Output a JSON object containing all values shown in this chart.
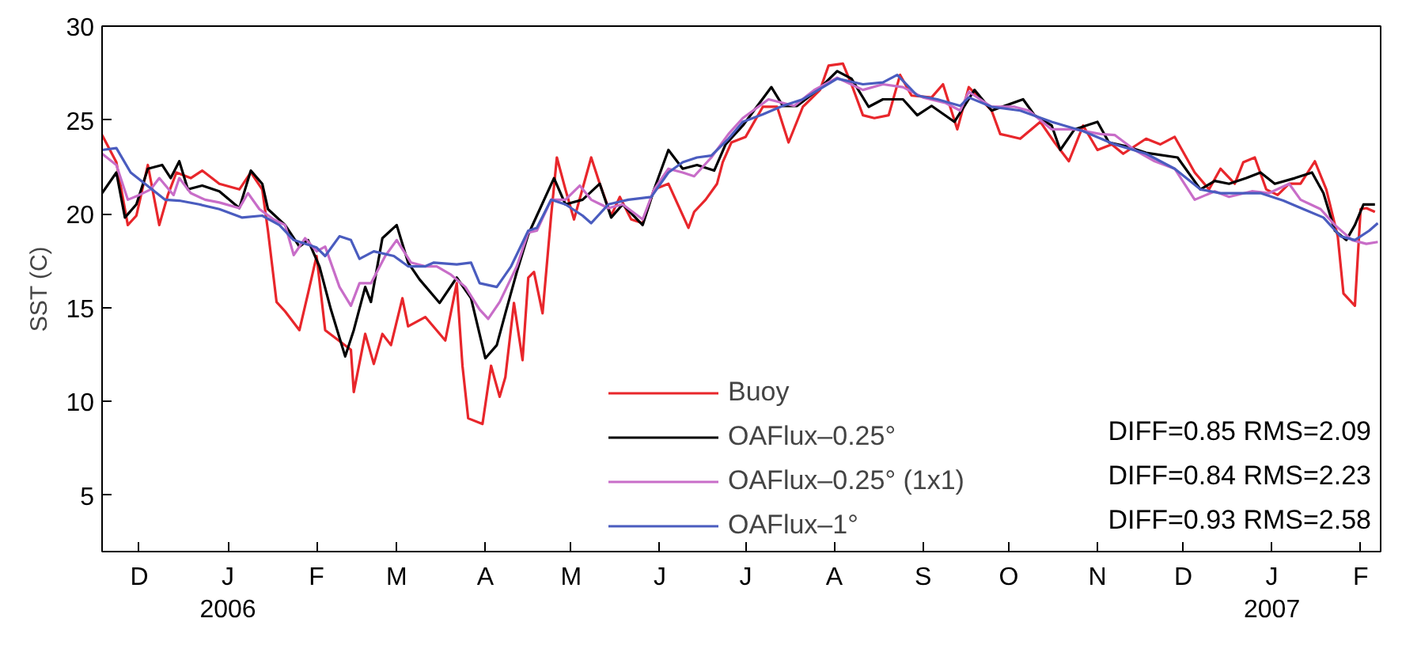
{
  "chart_data": {
    "type": "line",
    "ylabel": "SST (C)",
    "xlim": [
      "2005-11-18",
      "2007-02-08"
    ],
    "ylim": [
      2,
      30
    ],
    "yticks": [
      5,
      10,
      15,
      20,
      25,
      30
    ],
    "xticks": [
      {
        "value": "2005-12-01",
        "label": "D"
      },
      {
        "value": "2006-01-01",
        "label": "J\n2006"
      },
      {
        "value": "2006-02-01",
        "label": "F"
      },
      {
        "value": "2006-03-01",
        "label": "M"
      },
      {
        "value": "2006-04-01",
        "label": "A"
      },
      {
        "value": "2006-05-01",
        "label": "M"
      },
      {
        "value": "2006-06-01",
        "label": "J"
      },
      {
        "value": "2006-07-01",
        "label": "J"
      },
      {
        "value": "2006-08-01",
        "label": "A"
      },
      {
        "value": "2006-09-01",
        "label": "S"
      },
      {
        "value": "2006-10-01",
        "label": "O"
      },
      {
        "value": "2006-11-01",
        "label": "N"
      },
      {
        "value": "2006-12-01",
        "label": "D"
      },
      {
        "value": "2007-01-01",
        "label": "J\n2007"
      },
      {
        "value": "2007-02-01",
        "label": "F"
      }
    ],
    "grid": false,
    "legend": "bottom right",
    "line_style": "solid",
    "annotations": [
      "DIFF=0.85 RMS=2.09",
      "DIFF=0.84 RMS=2.23",
      "DIFF=0.93 RMS=2.58"
    ],
    "series": [
      {
        "name": "Buoy",
        "color": "#e8262b",
        "x": [
          "2005-11-18",
          "2005-11-23",
          "2005-11-27",
          "2005-11-30",
          "2005-12-04",
          "2005-12-08",
          "2005-12-11",
          "2005-12-14",
          "2005-12-19",
          "2005-12-23",
          "2005-12-29",
          "2006-01-05",
          "2006-01-09",
          "2006-01-13",
          "2006-01-15",
          "2006-01-18",
          "2006-01-21",
          "2006-01-26",
          "2006-01-29",
          "2006-02-01",
          "2006-02-04",
          "2006-02-13",
          "2006-02-14",
          "2006-02-18",
          "2006-02-21",
          "2006-02-24",
          "2006-02-27",
          "2006-03-03",
          "2006-03-05",
          "2006-03-11",
          "2006-03-18",
          "2006-03-22",
          "2006-03-24",
          "2006-03-26",
          "2006-03-31",
          "2006-04-03",
          "2006-04-06",
          "2006-04-08",
          "2006-04-11",
          "2006-04-14",
          "2006-04-16",
          "2006-04-18",
          "2006-04-21",
          "2006-04-24",
          "2006-04-26",
          "2006-04-29",
          "2006-05-02",
          "2006-05-08",
          "2006-05-11",
          "2006-05-15",
          "2006-05-18",
          "2006-05-22",
          "2006-05-26",
          "2006-05-30",
          "2006-06-04",
          "2006-06-11",
          "2006-06-13",
          "2006-06-17",
          "2006-06-21",
          "2006-06-23",
          "2006-06-26",
          "2006-07-01",
          "2006-07-07",
          "2006-07-12",
          "2006-07-16",
          "2006-07-21",
          "2006-07-27",
          "2006-07-30",
          "2006-08-04",
          "2006-08-07",
          "2006-08-11",
          "2006-08-15",
          "2006-08-20",
          "2006-08-24",
          "2006-08-28",
          "2006-09-04",
          "2006-09-08",
          "2006-09-13",
          "2006-09-17",
          "2006-09-25",
          "2006-09-28",
          "2006-10-05",
          "2006-10-12",
          "2006-10-17",
          "2006-10-22",
          "2006-10-27",
          "2006-11-01",
          "2006-11-06",
          "2006-11-10",
          "2006-11-18",
          "2006-11-23",
          "2006-11-28",
          "2006-12-05",
          "2006-12-10",
          "2006-12-14",
          "2006-12-19",
          "2006-12-22",
          "2006-12-26",
          "2006-12-30",
          "2007-01-03",
          "2007-01-07",
          "2007-01-11",
          "2007-01-16",
          "2007-01-20",
          "2007-01-24",
          "2007-01-26",
          "2007-01-30",
          "2007-02-01",
          "2007-02-03",
          "2007-02-06"
        ],
        "values": [
          24.2,
          22.75,
          19.4,
          19.9,
          22.6,
          19.4,
          21,
          22.2,
          21.9,
          22.3,
          21.6,
          21.3,
          22.2,
          21.3,
          19.1,
          15.3,
          14.8,
          13.8,
          15.75,
          17.75,
          13.8,
          12.75,
          10.5,
          13.6,
          12,
          13.6,
          13,
          15.5,
          14,
          14.5,
          13.25,
          16.3,
          11.9,
          9.1,
          8.8,
          11.9,
          10.25,
          11.3,
          15.25,
          12.2,
          16.6,
          16.9,
          14.7,
          19.9,
          23,
          21.3,
          19.7,
          23,
          21.6,
          19.9,
          20.9,
          19.7,
          19.5,
          21.3,
          21.6,
          19.25,
          20.1,
          20.75,
          21.6,
          22.75,
          23.8,
          24.1,
          25.7,
          25.7,
          23.8,
          25.7,
          26.6,
          27.9,
          28,
          26.9,
          25.25,
          25.1,
          25.25,
          27.4,
          26.3,
          26.2,
          26.9,
          24.5,
          26.75,
          25.5,
          24.25,
          24,
          24.9,
          23.8,
          22.8,
          24.7,
          23.4,
          23.7,
          23.2,
          24,
          23.7,
          24.1,
          22.2,
          21.3,
          22.4,
          21.6,
          22.75,
          23,
          21.3,
          21,
          21.6,
          21.6,
          22.8,
          21.3,
          18.8,
          15.75,
          15.1,
          20.25,
          20.3,
          20.1
        ]
      },
      {
        "name": "OAFlux–0.25°",
        "color": "#000000",
        "x": [
          "2005-11-18",
          "2005-11-23",
          "2005-11-26",
          "2005-11-30",
          "2005-12-04",
          "2005-12-09",
          "2005-12-12",
          "2005-12-15",
          "2005-12-18",
          "2005-12-23",
          "2005-12-29",
          "2006-01-05",
          "2006-01-09",
          "2006-01-13",
          "2006-01-15",
          "2006-01-21",
          "2006-01-26",
          "2006-01-29",
          "2006-02-02",
          "2006-02-06",
          "2006-02-11",
          "2006-02-14",
          "2006-02-18",
          "2006-02-20",
          "2006-02-24",
          "2006-03-01",
          "2006-03-05",
          "2006-03-09",
          "2006-03-16",
          "2006-03-22",
          "2006-03-27",
          "2006-04-01",
          "2006-04-05",
          "2006-04-08",
          "2006-04-12",
          "2006-04-16",
          "2006-04-25",
          "2006-04-29",
          "2006-05-05",
          "2006-05-11",
          "2006-05-15",
          "2006-05-19",
          "2006-05-26",
          "2006-05-30",
          "2006-06-04",
          "2006-06-09",
          "2006-06-14",
          "2006-06-20",
          "2006-06-24",
          "2006-06-30",
          "2006-07-10",
          "2006-07-14",
          "2006-07-19",
          "2006-07-27",
          "2006-08-02",
          "2006-08-07",
          "2006-08-13",
          "2006-08-18",
          "2006-08-25",
          "2006-08-30",
          "2006-09-04",
          "2006-09-12",
          "2006-09-19",
          "2006-09-25",
          "2006-10-06",
          "2006-10-10",
          "2006-10-16",
          "2006-10-19",
          "2006-10-24",
          "2006-11-01",
          "2006-11-05",
          "2006-11-11",
          "2006-11-18",
          "2006-11-29",
          "2006-12-07",
          "2006-12-12",
          "2006-12-17",
          "2006-12-23",
          "2006-12-28",
          "2007-01-02",
          "2007-01-09",
          "2007-01-15",
          "2007-01-19",
          "2007-01-23",
          "2007-01-27",
          "2007-01-30",
          "2007-02-02",
          "2007-02-06"
        ],
        "values": [
          21.1,
          22.2,
          19.8,
          20.5,
          22.4,
          22.6,
          21.9,
          22.8,
          21.3,
          21.5,
          21.2,
          20.3,
          22.3,
          21.6,
          20.25,
          19.4,
          18.25,
          18.6,
          17.2,
          14.9,
          12.4,
          13.8,
          16.1,
          15.3,
          18.7,
          19.4,
          17.4,
          16.5,
          15.25,
          16.6,
          15.5,
          12.3,
          13,
          14.7,
          16.9,
          18.9,
          21.9,
          20.5,
          20.75,
          21.6,
          19.8,
          20.5,
          19.4,
          21.3,
          23.4,
          22.4,
          22.6,
          22.3,
          23.7,
          24.7,
          26.75,
          25.75,
          25.75,
          26.7,
          27.6,
          27.2,
          25.7,
          26.1,
          26.1,
          25.25,
          25.75,
          24.9,
          26.6,
          25.5,
          26.1,
          25.25,
          24.7,
          23.4,
          24.5,
          24.9,
          23.8,
          23.6,
          23.25,
          23,
          21.3,
          21.75,
          21.6,
          21.9,
          22.2,
          21.6,
          21.9,
          22.2,
          21.1,
          19.1,
          18.6,
          19.4,
          20.5,
          20.5
        ]
      },
      {
        "name": "OAFlux–0.25° (1x1)",
        "color": "#c86dc8",
        "x": [
          "2005-11-18",
          "2005-11-23",
          "2005-11-27",
          "2005-12-01",
          "2005-12-05",
          "2005-12-08",
          "2005-12-13",
          "2005-12-15",
          "2005-12-19",
          "2005-12-24",
          "2005-12-29",
          "2006-01-05",
          "2006-01-08",
          "2006-01-12",
          "2006-01-17",
          "2006-01-21",
          "2006-01-24",
          "2006-01-28",
          "2006-02-01",
          "2006-02-04",
          "2006-02-09",
          "2006-02-13",
          "2006-02-16",
          "2006-02-20",
          "2006-02-25",
          "2006-03-01",
          "2006-03-06",
          "2006-03-11",
          "2006-03-15",
          "2006-03-20",
          "2006-03-25",
          "2006-03-30",
          "2006-04-02",
          "2006-04-06",
          "2006-04-12",
          "2006-04-16",
          "2006-04-19",
          "2006-04-24",
          "2006-04-29",
          "2006-05-04",
          "2006-05-08",
          "2006-05-14",
          "2006-05-19",
          "2006-05-26",
          "2006-05-30",
          "2006-06-04",
          "2006-06-09",
          "2006-06-13",
          "2006-06-19",
          "2006-06-25",
          "2006-06-30",
          "2006-07-09",
          "2006-07-18",
          "2006-07-25",
          "2006-08-02",
          "2006-08-11",
          "2006-08-18",
          "2006-08-25",
          "2006-09-01",
          "2006-09-09",
          "2006-09-14",
          "2006-09-17",
          "2006-09-25",
          "2006-10-03",
          "2006-10-08",
          "2006-10-16",
          "2006-10-24",
          "2006-11-02",
          "2006-11-07",
          "2006-11-14",
          "2006-11-21",
          "2006-11-28",
          "2006-12-05",
          "2006-12-12",
          "2006-12-17",
          "2006-12-25",
          "2006-12-31",
          "2007-01-07",
          "2007-01-11",
          "2007-01-18",
          "2007-01-23",
          "2007-01-29",
          "2007-02-03",
          "2007-02-07"
        ],
        "values": [
          23.2,
          22.6,
          20.75,
          21,
          21.3,
          21.9,
          21,
          21.9,
          21.1,
          20.75,
          20.6,
          20.3,
          21.1,
          20.25,
          19.7,
          19.4,
          17.8,
          18.7,
          18,
          18.25,
          16.1,
          15.1,
          16.3,
          16.3,
          17.75,
          18.6,
          17.4,
          17.2,
          17.2,
          16.75,
          16.1,
          14.9,
          14.4,
          15.3,
          17.2,
          19,
          19.1,
          20.75,
          20.75,
          21.5,
          20.75,
          20.3,
          20.5,
          19.7,
          21.3,
          22.4,
          22.2,
          22,
          23,
          24.25,
          25.1,
          26.1,
          25.75,
          26.6,
          27.25,
          26.6,
          26.9,
          26.75,
          26.2,
          25.9,
          25.5,
          26.5,
          25.7,
          25.7,
          25.5,
          24.5,
          24.5,
          24.25,
          24.2,
          23.4,
          22.8,
          22.4,
          20.75,
          21.2,
          20.9,
          21.2,
          21.1,
          21.6,
          20.75,
          20.25,
          19.4,
          18.6,
          18.4,
          18.5
        ]
      },
      {
        "name": "OAFlux–1°",
        "color": "#4a5cbf",
        "x": [
          "2005-11-18",
          "2005-11-23",
          "2005-11-28",
          "2005-12-03",
          "2005-12-10",
          "2005-12-15",
          "2005-12-22",
          "2005-12-29",
          "2006-01-06",
          "2006-01-13",
          "2006-01-19",
          "2006-01-24",
          "2006-02-01",
          "2006-02-04",
          "2006-02-09",
          "2006-02-13",
          "2006-02-16",
          "2006-02-21",
          "2006-02-28",
          "2006-03-05",
          "2006-03-11",
          "2006-03-14",
          "2006-03-22",
          "2006-03-27",
          "2006-03-30",
          "2006-04-05",
          "2006-04-10",
          "2006-04-16",
          "2006-04-19",
          "2006-04-24",
          "2006-04-29",
          "2006-05-05",
          "2006-05-08",
          "2006-05-14",
          "2006-05-21",
          "2006-05-29",
          "2006-06-04",
          "2006-06-09",
          "2006-06-14",
          "2006-06-19",
          "2006-06-25",
          "2006-06-30",
          "2006-07-07",
          "2006-07-14",
          "2006-07-21",
          "2006-08-02",
          "2006-08-11",
          "2006-08-18",
          "2006-08-23",
          "2006-08-30",
          "2006-09-06",
          "2006-09-14",
          "2006-09-17",
          "2006-09-25",
          "2006-10-05",
          "2006-10-16",
          "2006-10-27",
          "2006-11-07",
          "2006-11-18",
          "2006-11-28",
          "2006-12-07",
          "2006-12-14",
          "2006-12-21",
          "2006-12-28",
          "2007-01-05",
          "2007-01-12",
          "2007-01-19",
          "2007-01-25",
          "2007-01-30",
          "2007-02-04",
          "2007-02-07"
        ],
        "values": [
          23.4,
          23.5,
          22.2,
          21.6,
          20.75,
          20.7,
          20.5,
          20.25,
          19.8,
          19.9,
          19.4,
          18.6,
          18.2,
          17.75,
          18.8,
          18.6,
          17.6,
          18,
          17.75,
          17.2,
          17.2,
          17.4,
          17.3,
          17.4,
          16.3,
          16.1,
          17.2,
          19.1,
          19.25,
          20.75,
          20.5,
          19.9,
          19.5,
          20.5,
          20.75,
          20.9,
          22.2,
          22.75,
          23,
          23.1,
          24,
          24.9,
          25.3,
          25.75,
          26.1,
          27.2,
          26.9,
          27,
          27.4,
          26.3,
          26.1,
          25.75,
          26.2,
          25.7,
          25.5,
          24.9,
          24.4,
          23.7,
          23.2,
          22.4,
          21.3,
          21.1,
          21.1,
          21.1,
          20.7,
          20.25,
          19.8,
          18.8,
          18.6,
          19.1,
          19.5
        ]
      }
    ]
  }
}
